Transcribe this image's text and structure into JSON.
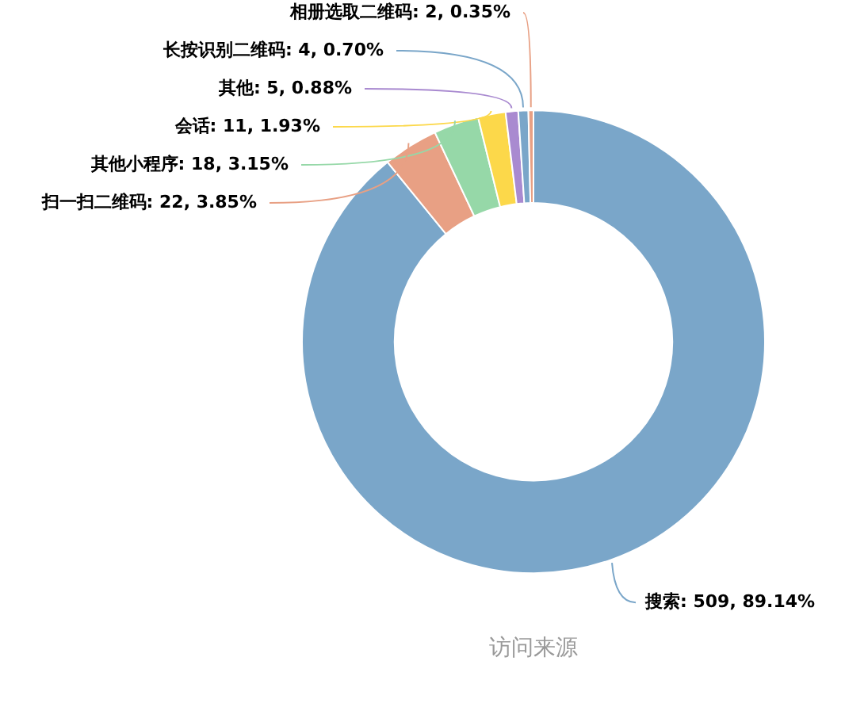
{
  "chart_data": {
    "type": "donut",
    "title": "访问来源",
    "categories": [
      "搜索",
      "扫一扫二维码",
      "其他小程序",
      "会话",
      "其他",
      "长按识别二维码",
      "相册选取二维码"
    ],
    "values": [
      509,
      22,
      18,
      11,
      5,
      4,
      2
    ],
    "value_labels": [
      "509, 89.14%",
      "22, 3.85%",
      "18, 3.15%",
      "11, 1.93%",
      "5, 0.88%",
      "4, 0.70%",
      "2, 0.35%"
    ],
    "colors": [
      "#7aa6c9",
      "#e8a084",
      "#96d8a8",
      "#fcd84a",
      "#a98ad0",
      "#7aa6c9",
      "#e8a084"
    ],
    "legend": false
  }
}
